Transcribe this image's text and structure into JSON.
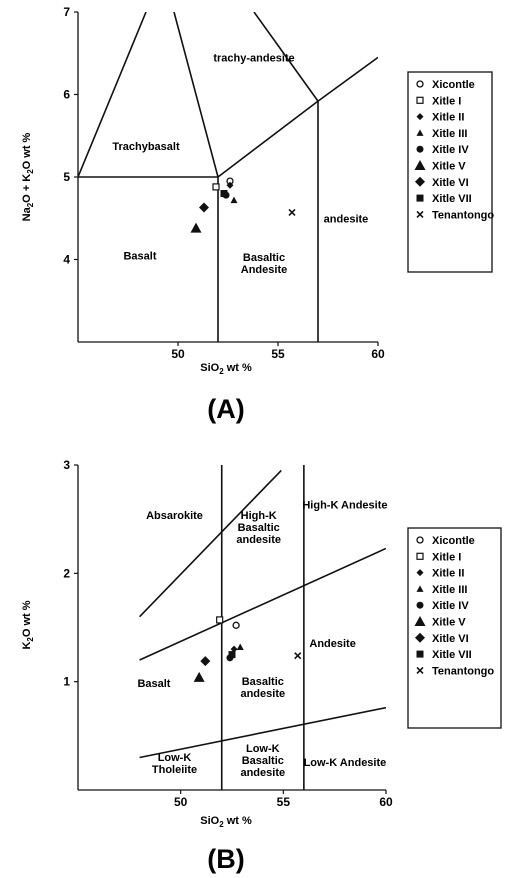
{
  "legend_series": [
    "Xicontle",
    "Xitle I",
    "Xitle II",
    "Xitle III",
    "Xitle IV",
    "Xitle V",
    "Xitle VI",
    "Xitle VII",
    "Tenantongo"
  ],
  "chart_data": [
    {
      "type": "scatter",
      "panel_label": "(A)",
      "xlabel_main": "SiO",
      "xlabel_sub": "2",
      "xlabel_tail": " wt %",
      "ylabel_parts": [
        "Na",
        "2",
        "O + K",
        "2",
        "O wt %"
      ],
      "xlim": [
        45,
        60
      ],
      "ylim": [
        3,
        7
      ],
      "x_ticks": [
        50,
        55,
        60
      ],
      "y_ticks": [
        4,
        5,
        6,
        7
      ],
      "legend_placement": "right",
      "boundaries": [
        [
          [
            45,
            5.0
          ],
          [
            48.4,
            7.0
          ]
        ],
        [
          [
            49.8,
            7.0
          ],
          [
            52.0,
            5.0
          ]
        ],
        [
          [
            53.8,
            7.0
          ],
          [
            57.0,
            5.92
          ]
        ],
        [
          [
            45,
            5.0
          ],
          [
            52.0,
            5.0
          ]
        ],
        [
          [
            52.0,
            3.0
          ],
          [
            52.0,
            5.0
          ]
        ],
        [
          [
            52.0,
            5.0
          ],
          [
            57.0,
            5.92
          ]
        ],
        [
          [
            57.0,
            5.92
          ],
          [
            60.0,
            6.45
          ]
        ],
        [
          [
            57.0,
            3.0
          ],
          [
            57.0,
            5.92
          ]
        ]
      ],
      "fields": [
        {
          "lines": [
            "trachy-andesite"
          ],
          "x": 53.8,
          "y": 6.4
        },
        {
          "lines": [
            "Trachybasalt"
          ],
          "x": 48.4,
          "y": 5.33
        },
        {
          "lines": [
            "Basalt"
          ],
          "x": 48.1,
          "y": 4.0
        },
        {
          "lines": [
            "Basaltic",
            "Andesite"
          ],
          "x": 54.3,
          "y": 3.98
        },
        {
          "lines": [
            "andesite"
          ],
          "x": 58.4,
          "y": 4.45
        }
      ],
      "series": [
        {
          "name": "Xicontle",
          "points": [
            [
              52.6,
              4.95
            ]
          ]
        },
        {
          "name": "Xitle I",
          "points": [
            [
              51.9,
              4.88
            ]
          ]
        },
        {
          "name": "Xitle II",
          "points": [
            [
              52.6,
              4.9
            ]
          ]
        },
        {
          "name": "Xitle III",
          "points": [
            [
              52.8,
              4.72
            ]
          ]
        },
        {
          "name": "Xitle IV",
          "points": [
            [
              52.4,
              4.78
            ]
          ]
        },
        {
          "name": "Xitle V",
          "points": [
            [
              50.9,
              4.38
            ]
          ]
        },
        {
          "name": "Xitle VI",
          "points": [
            [
              51.3,
              4.63
            ]
          ]
        },
        {
          "name": "Xitle VII",
          "points": [
            [
              52.3,
              4.8
            ]
          ]
        },
        {
          "name": "Tenantongo",
          "points": [
            [
              55.7,
              4.57
            ]
          ]
        }
      ]
    },
    {
      "type": "scatter",
      "panel_label": "(B)",
      "xlabel_main": "SiO",
      "xlabel_sub": "2",
      "xlabel_tail": " wt %",
      "ylabel_parts": [
        "K",
        "2",
        "O wt %"
      ],
      "xlim": [
        45,
        60
      ],
      "ylim": [
        0,
        3
      ],
      "x_ticks": [
        50,
        55,
        60
      ],
      "y_ticks": [
        1,
        2,
        3
      ],
      "legend_placement": "right",
      "boundaries": [
        [
          [
            48,
            1.6
          ],
          [
            54.9,
            2.95
          ]
        ],
        [
          [
            48,
            1.2
          ],
          [
            60,
            2.23
          ]
        ],
        [
          [
            48,
            0.3
          ],
          [
            60,
            0.76
          ]
        ],
        [
          [
            52,
            0.0
          ],
          [
            52,
            3.0
          ]
        ],
        [
          [
            56,
            0.0
          ],
          [
            56,
            3.0
          ]
        ]
      ],
      "fields": [
        {
          "lines": [
            "Absarokite"
          ],
          "x": 49.7,
          "y": 2.5
        },
        {
          "lines": [
            "High-K",
            "Basaltic",
            "andesite"
          ],
          "x": 53.8,
          "y": 2.5
        },
        {
          "lines": [
            "High-K Andesite"
          ],
          "x": 58.0,
          "y": 2.6
        },
        {
          "lines": [
            "Andesite"
          ],
          "x": 57.4,
          "y": 1.32
        },
        {
          "lines": [
            "Basalt"
          ],
          "x": 48.7,
          "y": 0.95
        },
        {
          "lines": [
            "Basaltic",
            "andesite"
          ],
          "x": 54.0,
          "y": 0.97
        },
        {
          "lines": [
            "Low-K",
            "Tholeiite"
          ],
          "x": 49.7,
          "y": 0.27
        },
        {
          "lines": [
            "Low-K",
            "Basaltic",
            "andesite"
          ],
          "x": 54.0,
          "y": 0.35
        },
        {
          "lines": [
            "Low-K Andesite"
          ],
          "x": 58.0,
          "y": 0.22
        }
      ],
      "series": [
        {
          "name": "Xicontle",
          "points": [
            [
              52.7,
              1.52
            ]
          ]
        },
        {
          "name": "Xitle I",
          "points": [
            [
              51.9,
              1.57
            ]
          ]
        },
        {
          "name": "Xitle II",
          "points": [
            [
              52.6,
              1.3
            ]
          ]
        },
        {
          "name": "Xitle III",
          "points": [
            [
              52.9,
              1.32
            ]
          ]
        },
        {
          "name": "Xitle IV",
          "points": [
            [
              52.4,
              1.22
            ]
          ]
        },
        {
          "name": "Xitle V",
          "points": [
            [
              50.9,
              1.04
            ]
          ]
        },
        {
          "name": "Xitle VI",
          "points": [
            [
              51.2,
              1.19
            ]
          ]
        },
        {
          "name": "Xitle VII",
          "points": [
            [
              52.5,
              1.25
            ]
          ]
        },
        {
          "name": "Tenantongo",
          "points": [
            [
              55.7,
              1.24
            ]
          ]
        }
      ]
    }
  ]
}
